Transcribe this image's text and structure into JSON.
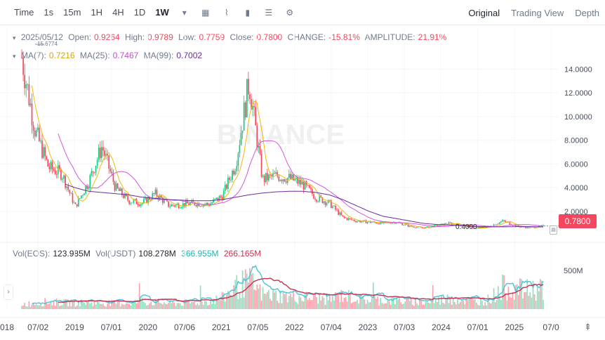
{
  "toolbar": {
    "time_label": "Time",
    "intervals": [
      "1s",
      "15m",
      "1H",
      "4H",
      "1D",
      "1W"
    ],
    "selected_interval": "1W",
    "views": [
      "Original",
      "Trading View",
      "Depth"
    ],
    "selected_view": "Original"
  },
  "ohlc": {
    "date": "2025/05/12",
    "open_label": "Open:",
    "open": "0.9264",
    "high_label": "High:",
    "high": "0.9789",
    "low_label": "Low:",
    "low": "0.7759",
    "close_label": "Close:",
    "close": "0.7800",
    "change_label": "CHANGE:",
    "change": "-15.81%",
    "amplitude_label": "AMPLITUDE:",
    "amplitude": "21.91%"
  },
  "ma": {
    "ma7_label": "MA(7):",
    "ma7": "0.7216",
    "ma25_label": "MA(25):",
    "ma25": "0.7467",
    "ma99_label": "MA(99):",
    "ma99": "0.7002"
  },
  "volume": {
    "eos_label": "Vol(EOS):",
    "eos": "123.985M",
    "usdt_label": "Vol(USDT)",
    "usdt": "108.278M",
    "usdt_ma1": "366.955M",
    "usdt_ma2": "266.165M",
    "axis_tick": "500M"
  },
  "annotations": {
    "high_marker": "15.6774",
    "low_marker": "0.4000"
  },
  "current_price": "0.7800",
  "watermark": "BINANCE",
  "colors": {
    "up": "#0ecb81",
    "down": "#f6465d",
    "ma7": "#f0b90b",
    "ma25": "#d356e0",
    "ma99": "#6a2b9a"
  },
  "chart_data": {
    "type": "candlestick",
    "title": "",
    "y_axis_ticks": [
      "2.0000",
      "4.0000",
      "6.0000",
      "8.0000",
      "10.0000",
      "12.0000",
      "14.0000"
    ],
    "ylim": [
      0,
      16
    ],
    "x_tick_labels": [
      "018",
      "07/02",
      "2019",
      "07/01",
      "2020",
      "07/06",
      "2021",
      "07/05",
      "2022",
      "07/04",
      "2023",
      "07/03",
      "2024",
      "07/01",
      "2025",
      "07/0"
    ],
    "price_series": {
      "name": "Close (approx)",
      "x": [
        "2018-06",
        "2018-07",
        "2018-09",
        "2018-11",
        "2019-01",
        "2019-04",
        "2019-06",
        "2019-08",
        "2019-10",
        "2019-12",
        "2020-02",
        "2020-04",
        "2020-06",
        "2020-09",
        "2020-12",
        "2021-02",
        "2021-04",
        "2021-05",
        "2021-06",
        "2021-08",
        "2021-09",
        "2021-11",
        "2022-01",
        "2022-03",
        "2022-05",
        "2022-07",
        "2022-10",
        "2023-01",
        "2023-04",
        "2023-07",
        "2023-10",
        "2024-01",
        "2024-03",
        "2024-05",
        "2024-08",
        "2024-11",
        "2024-12",
        "2025-02",
        "2025-04",
        "2025-05"
      ],
      "values": [
        15.0,
        8.8,
        5.7,
        5.2,
        2.4,
        4.5,
        7.5,
        4.0,
        2.9,
        2.7,
        3.5,
        2.5,
        2.6,
        2.7,
        2.6,
        3.3,
        6.0,
        13.0,
        4.7,
        5.0,
        4.8,
        4.3,
        3.2,
        2.7,
        1.5,
        1.2,
        1.1,
        1.0,
        1.1,
        0.75,
        0.6,
        0.8,
        1.0,
        0.85,
        0.55,
        0.75,
        1.2,
        0.75,
        0.62,
        0.78
      ]
    },
    "ma99_series": {
      "values": [
        6.0,
        5.5,
        5.0,
        4.4,
        4.0,
        3.7,
        3.6,
        3.5,
        3.4,
        3.2,
        3.1,
        3.0,
        2.95,
        2.9,
        2.9,
        3.0,
        3.2,
        3.4,
        3.55,
        3.65,
        3.7,
        3.7,
        3.6,
        3.4,
        3.0,
        2.5,
        2.0,
        1.6,
        1.4,
        1.2,
        1.0,
        0.9,
        0.85,
        0.8,
        0.72,
        0.7,
        0.7,
        0.72,
        0.72,
        0.7
      ]
    },
    "volume_axis_ticks": [
      "500M"
    ],
    "current_price": 0.78
  }
}
